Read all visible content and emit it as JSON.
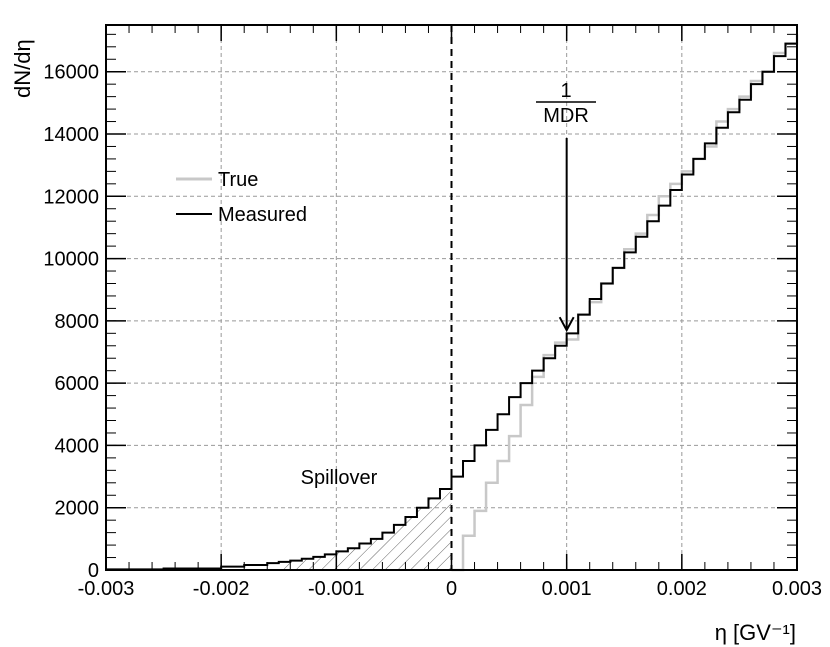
{
  "chart_data": {
    "type": "line",
    "subtype": "step-histogram",
    "xlabel": "η [GV⁻¹]",
    "ylabel": "dN/dη",
    "xlim": [
      -0.003,
      0.003
    ],
    "ylim": [
      0,
      17500
    ],
    "grid": true,
    "legend_position": "left-middle",
    "x_tick_labels": [
      "-0.003",
      "-0.002",
      "-0.001",
      "0",
      "0.001",
      "0.002",
      "0.003"
    ],
    "y_tick_labels": [
      "0",
      "2000",
      "4000",
      "6000",
      "8000",
      "10000",
      "12000",
      "14000",
      "16000"
    ],
    "legend": [
      {
        "label": "True",
        "color": "#c8c8c8"
      },
      {
        "label": "Measured",
        "color": "#000000"
      }
    ],
    "series": [
      {
        "name": "True",
        "color": "#c8c8c8",
        "x": [
          0.0,
          0.0001,
          0.0002,
          0.0003,
          0.0004,
          0.0005,
          0.0006,
          0.0007,
          0.0008,
          0.0009,
          0.001,
          0.0011,
          0.0012,
          0.0013,
          0.0014,
          0.0015,
          0.0016,
          0.0017,
          0.0018,
          0.0019,
          0.002,
          0.0021,
          0.0022,
          0.0023,
          0.0024,
          0.0025,
          0.0026,
          0.0027,
          0.0028,
          0.0029,
          0.003
        ],
        "y": [
          0,
          1100,
          1900,
          2800,
          3500,
          4300,
          5300,
          6200,
          6900,
          7300,
          7400,
          8200,
          8600,
          9200,
          9700,
          10300,
          10800,
          11400,
          12000,
          12400,
          12800,
          13200,
          13600,
          14400,
          14800,
          15200,
          15700,
          16000,
          16600,
          16900,
          17200
        ]
      },
      {
        "name": "Measured",
        "color": "#000000",
        "x": [
          -0.003,
          -0.0025,
          -0.002,
          -0.0018,
          -0.0016,
          -0.0015,
          -0.0014,
          -0.0013,
          -0.0012,
          -0.0011,
          -0.001,
          -0.0009,
          -0.0008,
          -0.0007,
          -0.0006,
          -0.0005,
          -0.0004,
          -0.0003,
          -0.0002,
          -0.0001,
          0.0,
          0.0001,
          0.0002,
          0.0003,
          0.0004,
          0.0005,
          0.0006,
          0.0007,
          0.0008,
          0.0009,
          0.001,
          0.0011,
          0.0012,
          0.0013,
          0.0014,
          0.0015,
          0.0016,
          0.0017,
          0.0018,
          0.0019,
          0.002,
          0.0021,
          0.0022,
          0.0023,
          0.0024,
          0.0025,
          0.0026,
          0.0027,
          0.0028,
          0.0029,
          0.003
        ],
        "y": [
          20,
          50,
          110,
          160,
          220,
          260,
          300,
          360,
          420,
          500,
          600,
          700,
          850,
          1000,
          1200,
          1450,
          1700,
          2000,
          2300,
          2600,
          3000,
          3500,
          4000,
          4500,
          5000,
          5550,
          6000,
          6400,
          6800,
          7200,
          7600,
          8200,
          8700,
          9200,
          9700,
          10200,
          10700,
          11200,
          11700,
          12200,
          12700,
          13200,
          13700,
          14200,
          14700,
          15100,
          15600,
          16000,
          16500,
          16900,
          17200
        ]
      }
    ],
    "annotations": {
      "spillover_label": "Spillover",
      "mdr_numerator": "1",
      "mdr_denominator": "MDR",
      "mdr_arrow_x": 0.001,
      "mdr_arrow_y": 7700,
      "divider_x": 0
    }
  }
}
